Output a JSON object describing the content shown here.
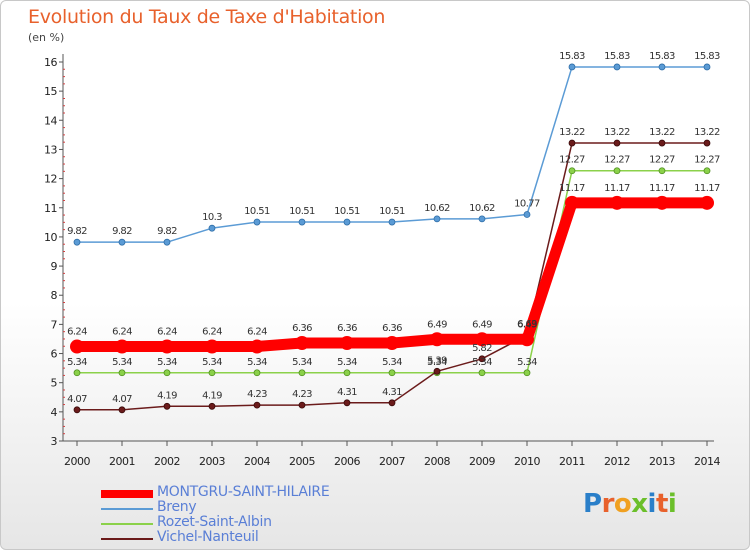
{
  "title": "Evolution du Taux de Taxe d'Habitation",
  "subtitle": "(en %)",
  "logo_text": "Proxiti",
  "chart_data": {
    "type": "line",
    "title": "Evolution du Taux de Taxe d'Habitation",
    "ylabel": "(en %)",
    "xlabel": "",
    "x": [
      "2000",
      "2001",
      "2002",
      "2003",
      "2004",
      "2005",
      "2006",
      "2007",
      "2008",
      "2009",
      "2010",
      "2011",
      "2012",
      "2013",
      "2014"
    ],
    "ylim": [
      3,
      16
    ],
    "yticks": [
      "3",
      "4",
      "5",
      "6",
      "7",
      "8",
      "9",
      "10",
      "11",
      "12",
      "13",
      "14",
      "15",
      "16"
    ],
    "grid": false,
    "legend_position": "bottom",
    "series": [
      {
        "name": "MONTGRU-SAINT-HILAIRE",
        "color": "#ff0000",
        "values": [
          6.24,
          6.24,
          6.24,
          6.24,
          6.24,
          6.36,
          6.36,
          6.36,
          6.49,
          6.49,
          6.49,
          11.17,
          11.17,
          11.17,
          11.17
        ],
        "labels": [
          "6.24",
          "6.24",
          "6.24",
          "6.24",
          "6.24",
          "6.36",
          "6.36",
          "6.36",
          "6.49",
          "6.49",
          "6.49",
          "11.17",
          "11.17",
          "11.17",
          "11.17"
        ]
      },
      {
        "name": "Breny",
        "color": "#5b9bd5",
        "values": [
          9.82,
          9.82,
          9.82,
          10.3,
          10.51,
          10.51,
          10.51,
          10.51,
          10.62,
          10.62,
          10.77,
          15.83,
          15.83,
          15.83,
          15.83
        ],
        "labels": [
          "9.82",
          "9.82",
          "9.82",
          "10.3",
          "10.51",
          "10.51",
          "10.51",
          "10.51",
          "10.62",
          "10.62",
          "10.77",
          "15.83",
          "15.83",
          "15.83",
          "15.83"
        ]
      },
      {
        "name": "Rozet-Saint-Albin",
        "color": "#8bd14a",
        "values": [
          5.34,
          5.34,
          5.34,
          5.34,
          5.34,
          5.34,
          5.34,
          5.34,
          5.34,
          5.34,
          5.34,
          12.27,
          12.27,
          12.27,
          12.27
        ],
        "labels": [
          "5.34",
          "5.34",
          "5.34",
          "5.34",
          "5.34",
          "5.34",
          "5.34",
          "5.34",
          "5.34",
          "5.34",
          "5.34",
          "12.27",
          "12.27",
          "12.27",
          "12.27"
        ]
      },
      {
        "name": "Vichel-Nanteuil",
        "color": "#6b1b1b",
        "values": [
          4.07,
          4.07,
          4.19,
          4.19,
          4.23,
          4.23,
          4.31,
          4.31,
          5.39,
          5.82,
          6.63,
          13.22,
          13.22,
          13.22,
          13.22
        ],
        "labels": [
          "4.07",
          "4.07",
          "4.19",
          "4.19",
          "4.23",
          "4.23",
          "4.31",
          "4.31",
          "5.39",
          "5.82",
          "6.63",
          "13.22",
          "13.22",
          "13.22",
          "13.22"
        ]
      }
    ]
  }
}
